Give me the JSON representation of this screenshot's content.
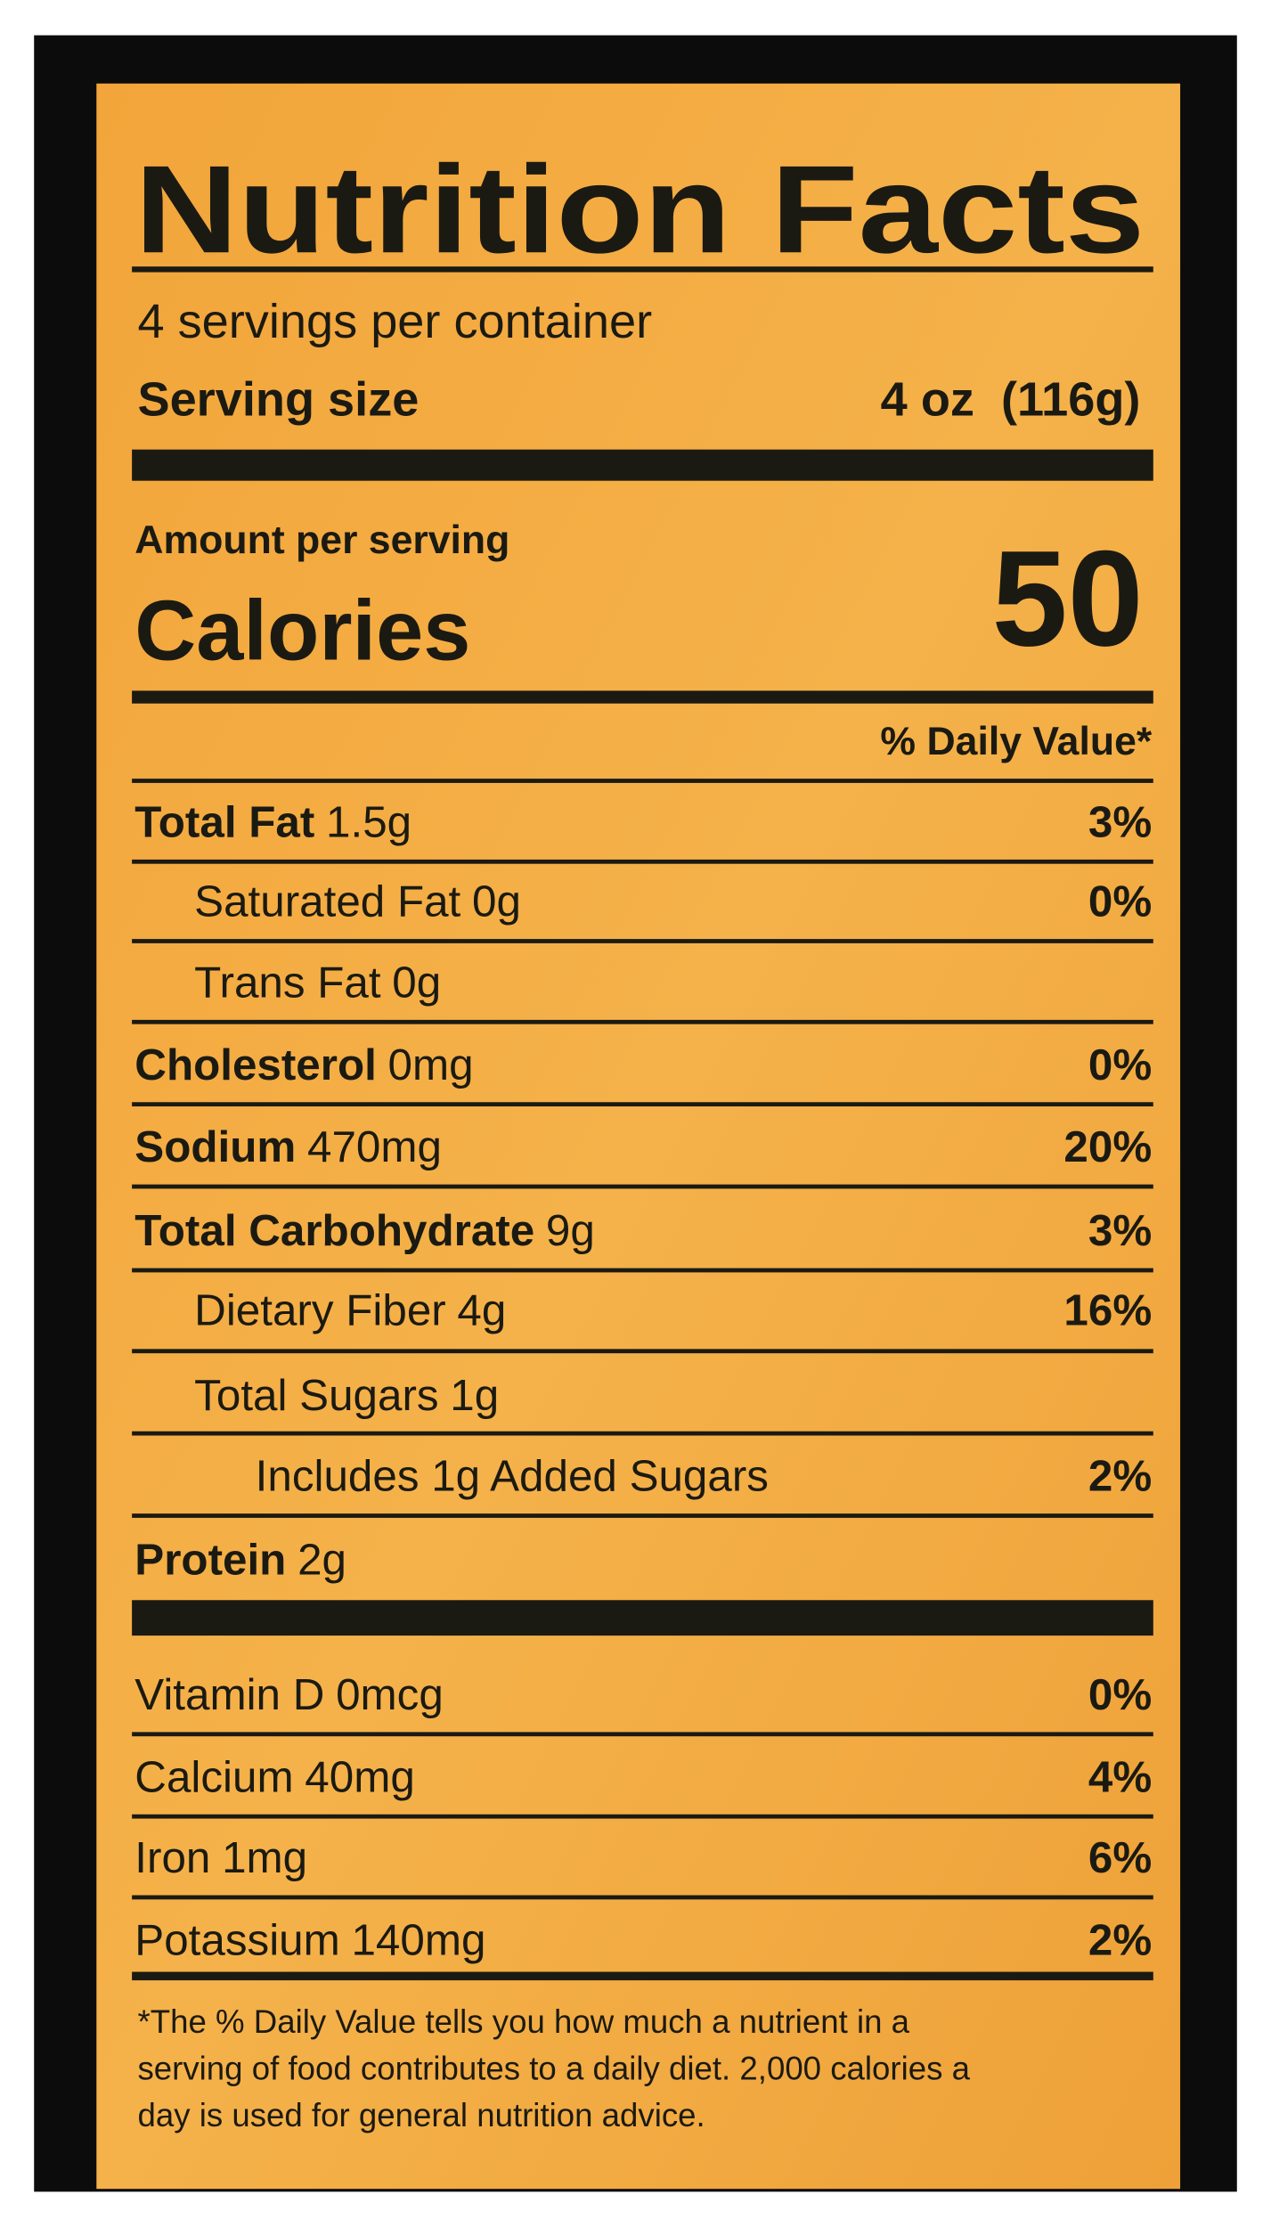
{
  "title": "Nutrition Facts",
  "servings": "4 servings per container",
  "serving_size": {
    "label": "Serving size",
    "value": "4 oz  (116g)"
  },
  "amount_per_serving": "Amount per serving",
  "calories": {
    "label": "Calories",
    "value": 50
  },
  "daily_value_header": "% Daily Value*",
  "nutrients": [
    {
      "name": "Total Fat",
      "amount": "1.5g",
      "dv": "3%"
    },
    {
      "name": "Saturated Fat",
      "amount": "0g",
      "dv": "0%"
    },
    {
      "name": "Trans Fat",
      "amount": "0g"
    },
    {
      "name": "Cholesterol",
      "amount": "0mg",
      "dv": "0%"
    },
    {
      "name": "Sodium",
      "amount": "470mg",
      "dv": "20%"
    },
    {
      "name": "Total Carbohydrate",
      "amount": "9g",
      "dv": "3%"
    },
    {
      "name": "Dietary Fiber",
      "amount": "4g",
      "dv": "16%"
    },
    {
      "name": "Total Sugars",
      "amount": "1g"
    },
    {
      "name": "Includes 1g Added Sugars",
      "dv": "2%"
    },
    {
      "name": "Protein",
      "amount": "2g"
    }
  ],
  "vitamins": [
    {
      "name": "Vitamin D",
      "amount": "0mcg",
      "dv": "0%"
    },
    {
      "name": "Calcium",
      "amount": "40mg",
      "dv": "4%"
    },
    {
      "name": "Iron",
      "amount": "1mg",
      "dv": "6%"
    },
    {
      "name": "Potassium",
      "amount": "140mg",
      "dv": "2%"
    }
  ],
  "footnote": [
    "*The % Daily Value tells you how much a nutrient in a",
    "serving of food contributes to a daily diet. 2,000 calories a",
    "day is used for general nutrition advice."
  ]
}
